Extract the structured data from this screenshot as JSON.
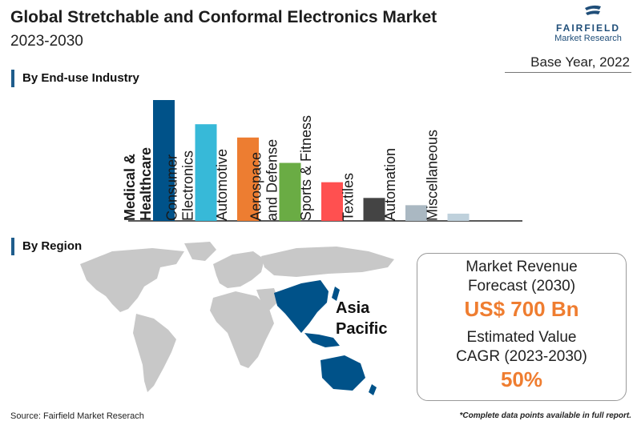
{
  "header": {
    "title": "Global Stretchable and Conformal Electronics Market",
    "subtitle": "2023-2030",
    "base_year": "Base Year, 2022"
  },
  "logo": {
    "name": "FAIRFIELD",
    "sub": "Market Research"
  },
  "sections": {
    "end_use": "By End-use Industry",
    "region": "By Region"
  },
  "chart_data": {
    "type": "bar",
    "title": "By End-use Industry",
    "categories": [
      "Medical & Healthcare",
      "Consumer Electronics",
      "Automotive",
      "Aerospace and Defense",
      "Sports & Fitness",
      "Textiles",
      "Automation",
      "Miscellaneous"
    ],
    "label_lines": [
      [
        "Medical &",
        "Healthcare"
      ],
      [
        "Consumer",
        "Electronics"
      ],
      [
        "Automotive"
      ],
      [
        "Aerospace",
        "and Defense"
      ],
      [
        "Sports & Fitness"
      ],
      [
        "Textiles"
      ],
      [
        "Automation"
      ],
      [
        "Miscellaneous"
      ]
    ],
    "values": [
      100,
      80,
      69,
      48,
      32,
      19,
      13,
      6
    ],
    "colors": [
      "#005289",
      "#37b9d8",
      "#ed7d31",
      "#6aac44",
      "#ff5050",
      "#444444",
      "#aab8c2",
      "#bfd1dc"
    ],
    "highlight_index": 0
  },
  "region": {
    "highlight": "Asia Pacific",
    "highlight_lines": [
      "Asia",
      "Pacific"
    ],
    "highlight_color": "#005289",
    "map_color": "#c8c8c8"
  },
  "kpi": {
    "revenue_label_1": "Market Revenue",
    "revenue_label_2": "Forecast (2030)",
    "revenue_value": "US$ 700 Bn",
    "cagr_label_1": "Estimated Value",
    "cagr_label_2": "CAGR (2023-2030)",
    "cagr_value": "50%",
    "accent_color": "#ef7d30"
  },
  "footer": {
    "source": "Source: Fairfield Market Reserach",
    "note": "*Complete data points available in full report."
  }
}
